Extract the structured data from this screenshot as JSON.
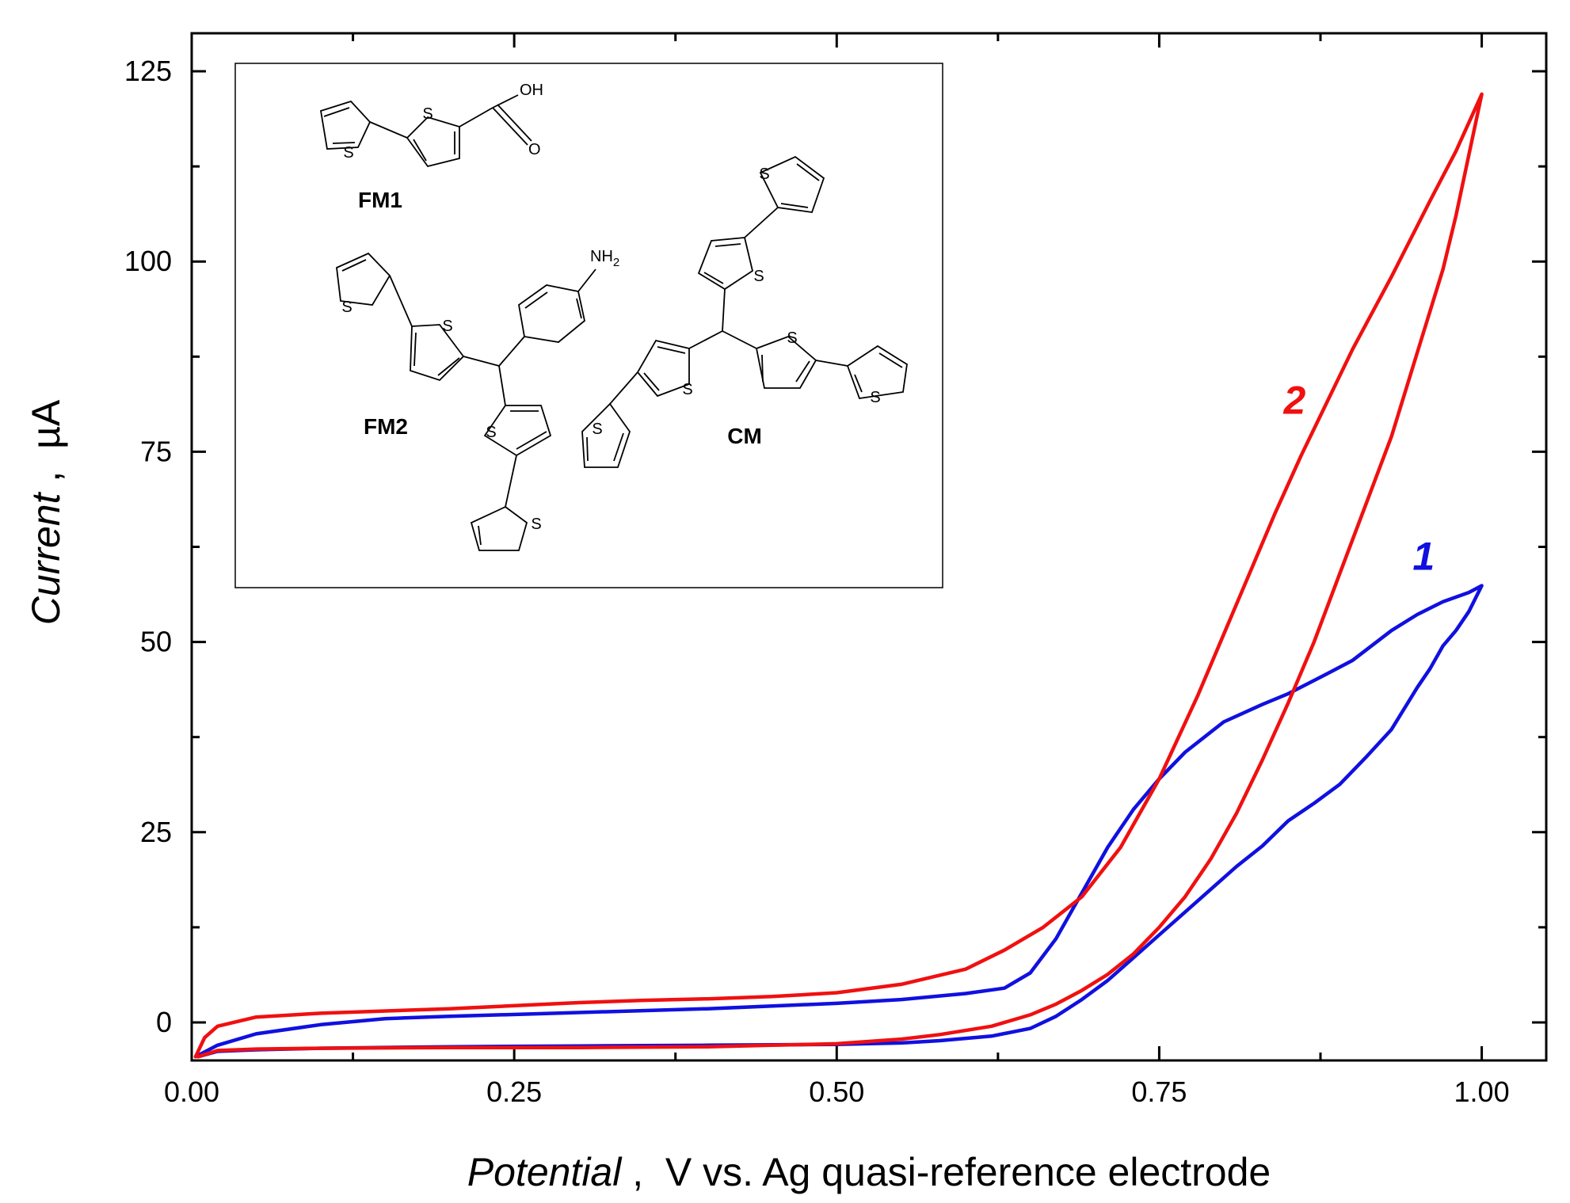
{
  "chart_data": {
    "type": "line",
    "title": "",
    "xlabel_italic": "Potential",
    "xlabel_rest": " ,  V vs. Ag quasi-reference electrode",
    "ylabel_italic": "Current",
    "ylabel_rest": " ,  µA",
    "xlim": [
      0.0,
      1.05
    ],
    "ylim": [
      -5,
      130
    ],
    "x_ticks": [
      0.0,
      0.25,
      0.5,
      0.75,
      1.0
    ],
    "x_tick_labels": [
      "0.00",
      "0.25",
      "0.50",
      "0.75",
      "1.00"
    ],
    "y_ticks": [
      0,
      25,
      50,
      75,
      100,
      125
    ],
    "y_tick_labels": [
      "0",
      "25",
      "50",
      "75",
      "100",
      "125"
    ],
    "grid": false,
    "series": [
      {
        "name": "1",
        "color": "#1010e0",
        "x": [
          0.003,
          0.02,
          0.05,
          0.1,
          0.15,
          0.2,
          0.3,
          0.4,
          0.5,
          0.55,
          0.6,
          0.63,
          0.65,
          0.67,
          0.69,
          0.71,
          0.73,
          0.75,
          0.77,
          0.8,
          0.83,
          0.85,
          0.88,
          0.9,
          0.93,
          0.95,
          0.97,
          0.99,
          1.0,
          0.99,
          0.98,
          0.97,
          0.96,
          0.95,
          0.93,
          0.91,
          0.89,
          0.87,
          0.85,
          0.83,
          0.81,
          0.79,
          0.77,
          0.75,
          0.73,
          0.71,
          0.69,
          0.67,
          0.65,
          0.62,
          0.58,
          0.55,
          0.5,
          0.4,
          0.3,
          0.2,
          0.1,
          0.05,
          0.02,
          0.005
        ],
        "values": [
          -4.5,
          -3.0,
          -1.5,
          -0.3,
          0.5,
          0.8,
          1.3,
          1.8,
          2.5,
          3.0,
          3.8,
          4.5,
          6.5,
          11,
          17,
          23,
          28,
          32,
          35.5,
          39.5,
          41.8,
          43.2,
          45.8,
          47.6,
          51.5,
          53.6,
          55.3,
          56.5,
          57.4,
          54,
          51.5,
          49.5,
          46.5,
          44,
          38.5,
          34.8,
          31.3,
          28.8,
          26.5,
          23.2,
          20.5,
          17.5,
          14.5,
          11.5,
          8.5,
          5.5,
          3.0,
          0.8,
          -0.8,
          -1.8,
          -2.4,
          -2.7,
          -2.9,
          -3.0,
          -3.1,
          -3.2,
          -3.4,
          -3.6,
          -3.8,
          -4.5
        ]
      },
      {
        "name": "2",
        "color": "#f01010",
        "x": [
          0.003,
          0.01,
          0.02,
          0.05,
          0.1,
          0.2,
          0.3,
          0.35,
          0.4,
          0.45,
          0.5,
          0.55,
          0.6,
          0.63,
          0.66,
          0.69,
          0.72,
          0.75,
          0.78,
          0.81,
          0.84,
          0.86,
          0.88,
          0.9,
          0.93,
          0.96,
          0.98,
          1.0,
          0.99,
          0.98,
          0.97,
          0.95,
          0.93,
          0.91,
          0.89,
          0.87,
          0.85,
          0.83,
          0.81,
          0.79,
          0.77,
          0.75,
          0.73,
          0.71,
          0.69,
          0.67,
          0.65,
          0.62,
          0.58,
          0.55,
          0.5,
          0.45,
          0.4,
          0.3,
          0.2,
          0.1,
          0.05,
          0.02,
          0.005
        ],
        "values": [
          -4.5,
          -2.0,
          -0.5,
          0.7,
          1.2,
          1.8,
          2.6,
          2.9,
          3.1,
          3.4,
          3.9,
          5.0,
          7.0,
          9.5,
          12.5,
          16.5,
          23,
          32,
          43,
          55,
          67,
          74.5,
          81.5,
          88.5,
          98,
          108,
          114.5,
          122,
          114,
          106,
          99,
          88,
          77,
          68,
          59,
          50,
          42,
          34.5,
          27.5,
          21.5,
          16.5,
          12.5,
          9.0,
          6.3,
          4.2,
          2.4,
          1.0,
          -0.5,
          -1.6,
          -2.2,
          -2.8,
          -3.0,
          -3.2,
          -3.3,
          -3.3,
          -3.4,
          -3.5,
          -3.7,
          -4.5
        ]
      }
    ],
    "series_labels": [
      {
        "text": "1",
        "color": "#1010e0",
        "x": 0.955,
        "y": 59.5
      },
      {
        "text": "2",
        "color": "#f01010",
        "x": 0.855,
        "y": 80
      }
    ]
  },
  "inset": {
    "molecules": [
      "FM1",
      "FM2",
      "CM"
    ],
    "atoms": {
      "sulfur": "S",
      "hydroxyl": "OH",
      "oxygen": "O",
      "amine": "NH",
      "subscript_2": "2"
    }
  }
}
